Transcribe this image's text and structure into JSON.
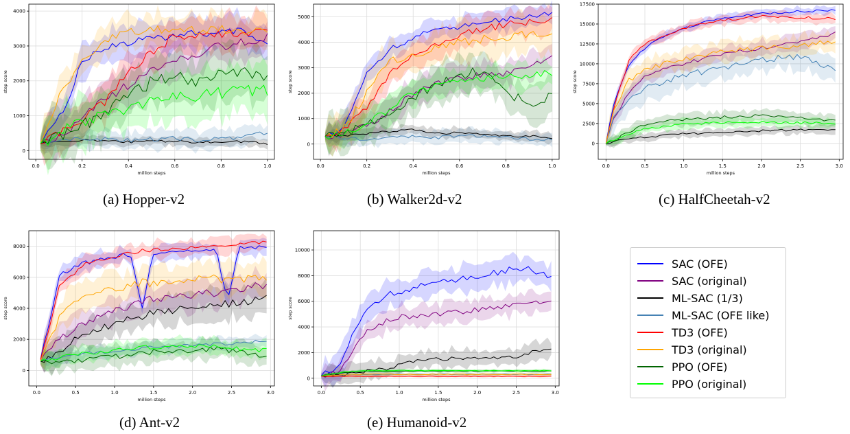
{
  "colors": {
    "SAC (OFE)": "#0000ff",
    "SAC (original)": "#800080",
    "ML-SAC (1/3)": "#000000",
    "ML-SAC (OFE like)": "#4682b4",
    "TD3 (OFE)": "#ff0000",
    "TD3 (original)": "#ffa500",
    "PPO (OFE)": "#006400",
    "PPO (original)": "#00ff00"
  },
  "legend": {
    "items": [
      "SAC (OFE)",
      "SAC (original)",
      "ML-SAC (1/3)",
      "ML-SAC (OFE like)",
      "TD3 (OFE)",
      "TD3 (original)",
      "PPO (OFE)",
      "PPO (original)"
    ]
  },
  "captions": {
    "a": "(a) Hopper-v2",
    "b": "(b) Walker2d-v2",
    "c": "(c) HalfCheetah-v2",
    "d": "(d) Ant-v2",
    "e": "(e) Humanoid-v2"
  },
  "chart_data": [
    {
      "type": "line",
      "id": "hopper",
      "caption": "(a) Hopper-v2",
      "xlabel": "million steps",
      "ylabel": "step score",
      "xlim": [
        -0.03,
        1.03
      ],
      "ylim": [
        -250,
        4200
      ],
      "xticks": [
        0.0,
        0.2,
        0.4,
        0.6,
        0.8,
        1.0
      ],
      "xtick_labels": [
        "0.0",
        "0.2",
        "0.4",
        "0.6",
        "0.8",
        "1.0"
      ],
      "yticks": [
        0,
        1000,
        2000,
        3000,
        4000
      ],
      "ytick_labels": [
        "0",
        "1000",
        "2000",
        "3000",
        "4000"
      ],
      "grid": true,
      "x": [
        0.02,
        0.1,
        0.2,
        0.3,
        0.4,
        0.5,
        0.6,
        0.7,
        0.8,
        0.9,
        1.0
      ],
      "series": [
        {
          "name": "SAC (OFE)",
          "values": [
            200,
            900,
            2500,
            3000,
            3100,
            3200,
            3300,
            3400,
            3350,
            3450,
            3100
          ],
          "spread": 450
        },
        {
          "name": "SAC (original)",
          "values": [
            200,
            400,
            900,
            1500,
            1900,
            2300,
            2600,
            2800,
            3000,
            3100,
            3300
          ],
          "spread": 500
        },
        {
          "name": "ML-SAC (1/3)",
          "values": [
            200,
            250,
            300,
            280,
            250,
            260,
            270,
            240,
            260,
            250,
            200
          ],
          "spread": 120
        },
        {
          "name": "ML-SAC (OFE like)",
          "values": [
            250,
            300,
            350,
            320,
            300,
            330,
            350,
            300,
            350,
            400,
            500
          ],
          "spread": 250
        },
        {
          "name": "TD3 (OFE)",
          "values": [
            200,
            500,
            900,
            1400,
            2200,
            2800,
            3300,
            3350,
            3300,
            3400,
            3350
          ],
          "spread": 500
        },
        {
          "name": "TD3 (original)",
          "values": [
            200,
            1500,
            2500,
            3200,
            3400,
            3450,
            3500,
            3450,
            3500,
            3400,
            3450
          ],
          "spread": 450
        },
        {
          "name": "PPO (OFE)",
          "values": [
            200,
            400,
            700,
            1100,
            1500,
            2000,
            2200,
            2000,
            2300,
            2200,
            2100
          ],
          "spread": 700
        },
        {
          "name": "PPO (original)",
          "values": [
            200,
            500,
            800,
            1000,
            1200,
            1400,
            1500,
            1600,
            1650,
            1700,
            1750
          ],
          "spread": 650
        }
      ]
    },
    {
      "type": "line",
      "id": "walker2d",
      "caption": "(b) Walker2d-v2",
      "xlabel": "million steps",
      "ylabel": "step score",
      "xlim": [
        -0.03,
        1.03
      ],
      "ylim": [
        -600,
        5500
      ],
      "xticks": [
        0.0,
        0.2,
        0.4,
        0.6,
        0.8,
        1.0
      ],
      "xtick_labels": [
        "0.0",
        "0.2",
        "0.4",
        "0.6",
        "0.8",
        "1.0"
      ],
      "yticks": [
        0,
        1000,
        2000,
        3000,
        4000,
        5000
      ],
      "ytick_labels": [
        "0",
        "1000",
        "2000",
        "3000",
        "4000",
        "5000"
      ],
      "grid": true,
      "x": [
        0.02,
        0.1,
        0.2,
        0.3,
        0.4,
        0.5,
        0.6,
        0.7,
        0.8,
        0.9,
        1.0
      ],
      "series": [
        {
          "name": "SAC (OFE)",
          "values": [
            300,
            600,
            2800,
            3700,
            4200,
            4500,
            4600,
            4800,
            4900,
            5000,
            5200
          ],
          "spread": 400
        },
        {
          "name": "SAC (original)",
          "values": [
            300,
            400,
            700,
            1300,
            2000,
            2400,
            2600,
            2700,
            2800,
            3000,
            3400
          ],
          "spread": 500
        },
        {
          "name": "ML-SAC (1/3)",
          "values": [
            300,
            350,
            400,
            500,
            550,
            400,
            450,
            400,
            350,
            300,
            250
          ],
          "spread": 200
        },
        {
          "name": "ML-SAC (OFE like)",
          "values": [
            300,
            250,
            200,
            300,
            300,
            250,
            350,
            300,
            250,
            200,
            150
          ],
          "spread": 250
        },
        {
          "name": "TD3 (OFE)",
          "values": [
            300,
            500,
            1500,
            2800,
            3500,
            3900,
            4300,
            4500,
            4700,
            4800,
            4850
          ],
          "spread": 500
        },
        {
          "name": "TD3 (original)",
          "values": [
            300,
            600,
            2000,
            3200,
            3500,
            3800,
            4000,
            4100,
            4200,
            4300,
            4400
          ],
          "spread": 700
        },
        {
          "name": "PPO (OFE)",
          "values": [
            300,
            400,
            700,
            1300,
            1800,
            2300,
            2700,
            2900,
            2000,
            1600,
            1900
          ],
          "spread": 700
        },
        {
          "name": "PPO (original)",
          "values": [
            300,
            400,
            800,
            1400,
            2000,
            2300,
            2500,
            2600,
            2700,
            2700,
            2800
          ],
          "spread": 500
        }
      ]
    },
    {
      "type": "line",
      "id": "halfcheetah",
      "caption": "(c) HalfCheetah-v2",
      "xlabel": "million steps",
      "ylabel": "step score",
      "xlim": [
        -0.1,
        3.05
      ],
      "ylim": [
        -2000,
        17500
      ],
      "xticks": [
        0.0,
        0.5,
        1.0,
        1.5,
        2.0,
        2.5,
        3.0
      ],
      "xtick_labels": [
        "0.0",
        "0.5",
        "1.0",
        "1.5",
        "2.0",
        "2.5",
        "3.0"
      ],
      "yticks": [
        0,
        2500,
        5000,
        7500,
        10000,
        12500,
        15000,
        17500
      ],
      "ytick_labels": [
        "0",
        "2500",
        "5000",
        "7500",
        "10000",
        "12500",
        "15000",
        "17500"
      ],
      "grid": true,
      "x": [
        0.0,
        0.1,
        0.3,
        0.5,
        0.75,
        1.0,
        1.5,
        2.0,
        2.5,
        2.95
      ],
      "series": [
        {
          "name": "SAC (OFE)",
          "values": [
            0,
            5000,
            10000,
            12000,
            13500,
            14500,
            15800,
            16300,
            16600,
            16700
          ],
          "spread": 500
        },
        {
          "name": "SAC (original)",
          "values": [
            0,
            3000,
            6500,
            8500,
            9500,
            10000,
            11200,
            12000,
            12800,
            13800
          ],
          "spread": 900
        },
        {
          "name": "ML-SAC (1/3)",
          "values": [
            0,
            200,
            600,
            800,
            1000,
            1200,
            1400,
            1600,
            1700,
            1800
          ],
          "spread": 500
        },
        {
          "name": "ML-SAC (OFE like)",
          "values": [
            0,
            3500,
            5500,
            6800,
            7800,
            8500,
            9500,
            10500,
            11000,
            9000
          ],
          "spread": 1500
        },
        {
          "name": "TD3 (OFE)",
          "values": [
            0,
            4500,
            10500,
            12500,
            13500,
            14500,
            15500,
            16000,
            15800,
            15700
          ],
          "spread": 600
        },
        {
          "name": "TD3 (original)",
          "values": [
            0,
            4000,
            8000,
            9200,
            10000,
            10500,
            11500,
            12000,
            12300,
            12800
          ],
          "spread": 1200
        },
        {
          "name": "PPO (OFE)",
          "values": [
            0,
            300,
            1500,
            2300,
            2800,
            3000,
            3300,
            3500,
            3200,
            2800
          ],
          "spread": 700
        },
        {
          "name": "PPO (original)",
          "values": [
            0,
            400,
            1200,
            1800,
            2200,
            2400,
            2600,
            2700,
            2600,
            2500
          ],
          "spread": 600
        }
      ]
    },
    {
      "type": "line",
      "id": "ant",
      "caption": "(d) Ant-v2",
      "xlabel": "million steps",
      "ylabel": "step score",
      "xlim": [
        -0.1,
        3.05
      ],
      "ylim": [
        -1000,
        9000
      ],
      "xticks": [
        0.0,
        0.5,
        1.0,
        1.5,
        2.0,
        2.5,
        3.0
      ],
      "xtick_labels": [
        "0.0",
        "0.5",
        "1.0",
        "1.5",
        "2.0",
        "2.5",
        "3.0"
      ],
      "yticks": [
        0,
        2000,
        4000,
        6000,
        8000
      ],
      "ytick_labels": [
        "0",
        "2000",
        "4000",
        "6000",
        "8000"
      ],
      "grid": true,
      "x": [
        0.05,
        0.3,
        0.6,
        1.0,
        1.2,
        1.35,
        1.5,
        2.0,
        2.3,
        2.45,
        2.6,
        2.95
      ],
      "series": [
        {
          "name": "SAC (OFE)",
          "values": [
            700,
            6200,
            6900,
            7300,
            7500,
            4000,
            7600,
            7700,
            7800,
            4500,
            7900,
            8000
          ],
          "spread": 500
        },
        {
          "name": "SAC (original)",
          "values": [
            600,
            2000,
            3000,
            3800,
            4200,
            4500,
            4600,
            4900,
            5000,
            5100,
            5300,
            5500
          ],
          "spread": 900
        },
        {
          "name": "ML-SAC (1/3)",
          "values": [
            600,
            1300,
            2300,
            3000,
            3300,
            3500,
            3700,
            4000,
            4200,
            4300,
            4400,
            4600
          ],
          "spread": 900
        },
        {
          "name": "ML-SAC (OFE like)",
          "values": [
            700,
            900,
            1100,
            1200,
            1300,
            1400,
            1500,
            1600,
            1700,
            1700,
            1800,
            1900
          ],
          "spread": 400
        },
        {
          "name": "TD3 (OFE)",
          "values": [
            700,
            5500,
            6800,
            7300,
            7600,
            7700,
            7800,
            7900,
            8100,
            8000,
            8200,
            8200
          ],
          "spread": 500
        },
        {
          "name": "TD3 (original)",
          "values": [
            600,
            3500,
            5000,
            5300,
            5500,
            5700,
            5600,
            5800,
            6000,
            5800,
            5900,
            6000
          ],
          "spread": 1000
        },
        {
          "name": "PPO (OFE)",
          "values": [
            600,
            500,
            700,
            900,
            1000,
            1100,
            1200,
            1300,
            1400,
            1300,
            1200,
            900
          ],
          "spread": 600
        },
        {
          "name": "PPO (original)",
          "values": [
            600,
            800,
            1100,
            1300,
            1400,
            1500,
            1500,
            1500,
            1600,
            1500,
            1400,
            1300
          ],
          "spread": 500
        }
      ]
    },
    {
      "type": "line",
      "id": "humanoid",
      "caption": "(e) Humanoid-v2",
      "xlabel": "million steps",
      "ylabel": "step score",
      "xlim": [
        -0.1,
        3.05
      ],
      "ylim": [
        -600,
        11500
      ],
      "xticks": [
        0.0,
        0.5,
        1.0,
        1.5,
        2.0,
        2.5,
        3.0
      ],
      "xtick_labels": [
        "0.0",
        "0.5",
        "1.0",
        "1.5",
        "2.0",
        "2.5",
        "3.0"
      ],
      "yticks": [
        0,
        2000,
        4000,
        6000,
        8000,
        10000
      ],
      "ytick_labels": [
        "0",
        "2000",
        "4000",
        "6000",
        "8000",
        "10000"
      ],
      "grid": true,
      "x": [
        0.0,
        0.25,
        0.4,
        0.6,
        0.8,
        1.0,
        1.3,
        1.6,
        2.0,
        2.3,
        2.6,
        2.95
      ],
      "series": [
        {
          "name": "SAC (OFE)",
          "values": [
            200,
            1000,
            3500,
            5500,
            6300,
            6800,
            7200,
            7600,
            7900,
            8300,
            8600,
            8000
          ],
          "spread": 1000
        },
        {
          "name": "SAC (original)",
          "values": [
            200,
            600,
            2000,
            3800,
            4400,
            4800,
            4900,
            5100,
            5300,
            5600,
            5800,
            5900
          ],
          "spread": 800
        },
        {
          "name": "ML-SAC (1/3)",
          "values": [
            200,
            300,
            400,
            500,
            700,
            1000,
            1400,
            1500,
            1600,
            1700,
            1800,
            2400
          ],
          "spread": 700
        },
        {
          "name": "ML-SAC (OFE like)",
          "values": [
            200,
            250,
            300,
            300,
            300,
            300,
            300,
            300,
            300,
            300,
            300,
            300
          ],
          "spread": 100
        },
        {
          "name": "TD3 (OFE)",
          "values": [
            150,
            150,
            150,
            150,
            150,
            150,
            150,
            150,
            150,
            150,
            150,
            150
          ],
          "spread": 60
        },
        {
          "name": "TD3 (original)",
          "values": [
            200,
            250,
            300,
            300,
            300,
            300,
            300,
            300,
            300,
            300,
            300,
            300
          ],
          "spread": 120
        },
        {
          "name": "PPO (OFE)",
          "values": [
            200,
            400,
            500,
            550,
            550,
            550,
            550,
            560,
            560,
            560,
            560,
            560
          ],
          "spread": 100
        },
        {
          "name": "PPO (original)",
          "values": [
            200,
            450,
            550,
            600,
            600,
            600,
            600,
            600,
            600,
            600,
            600,
            600
          ],
          "spread": 100
        }
      ]
    }
  ]
}
